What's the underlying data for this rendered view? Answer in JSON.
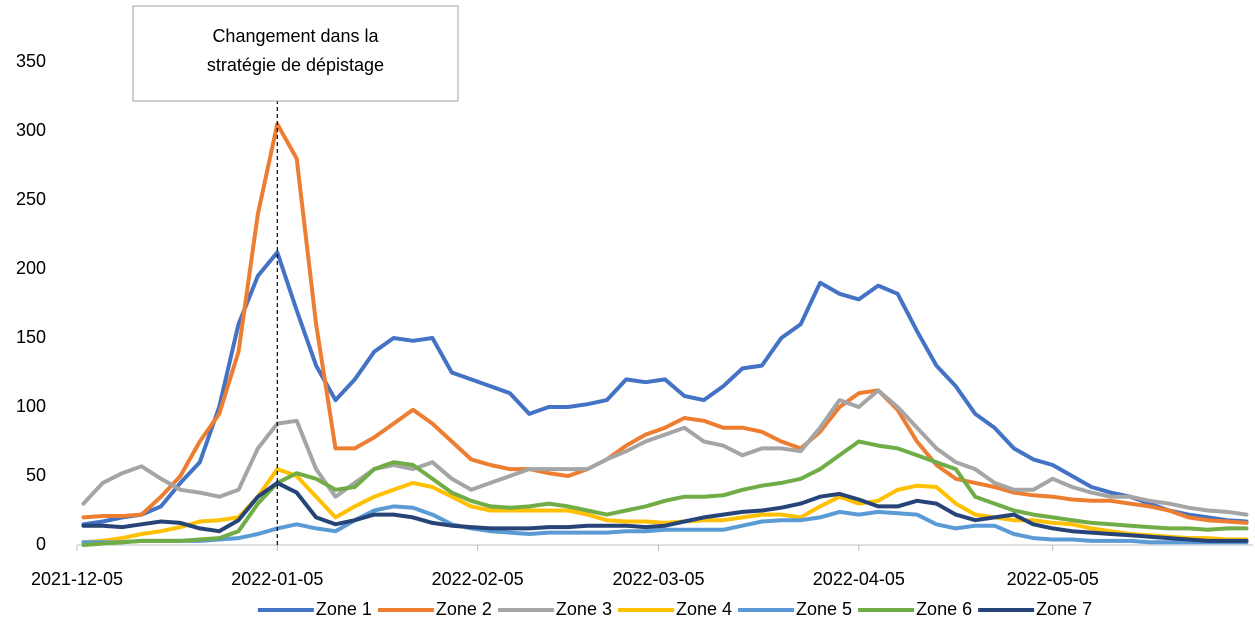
{
  "chart_data": {
    "type": "line",
    "x": [
      "2021-12-06",
      "2021-12-09",
      "2021-12-12",
      "2021-12-15",
      "2021-12-18",
      "2021-12-21",
      "2021-12-24",
      "2021-12-27",
      "2021-12-30",
      "2022-01-02",
      "2022-01-05",
      "2022-01-08",
      "2022-01-11",
      "2022-01-14",
      "2022-01-17",
      "2022-01-20",
      "2022-01-23",
      "2022-01-26",
      "2022-01-29",
      "2022-02-01",
      "2022-02-04",
      "2022-02-07",
      "2022-02-10",
      "2022-02-13",
      "2022-02-16",
      "2022-02-19",
      "2022-02-22",
      "2022-02-25",
      "2022-02-28",
      "2022-03-03",
      "2022-03-06",
      "2022-03-09",
      "2022-03-12",
      "2022-03-15",
      "2022-03-18",
      "2022-03-21",
      "2022-03-24",
      "2022-03-27",
      "2022-03-30",
      "2022-04-02",
      "2022-04-05",
      "2022-04-08",
      "2022-04-11",
      "2022-04-14",
      "2022-04-17",
      "2022-04-20",
      "2022-04-23",
      "2022-04-26",
      "2022-04-29",
      "2022-05-02",
      "2022-05-05",
      "2022-05-08",
      "2022-05-11",
      "2022-05-14",
      "2022-05-17",
      "2022-05-20",
      "2022-05-23",
      "2022-05-26",
      "2022-05-29",
      "2022-06-01",
      "2022-06-04"
    ],
    "series": [
      {
        "name": "Zone 1",
        "color": "#4472c4",
        "values": [
          15,
          17,
          20,
          22,
          28,
          45,
          60,
          100,
          160,
          195,
          212,
          170,
          130,
          105,
          120,
          140,
          150,
          148,
          150,
          125,
          120,
          115,
          110,
          95,
          100,
          100,
          102,
          105,
          120,
          118,
          120,
          108,
          105,
          115,
          128,
          130,
          150,
          160,
          190,
          182,
          178,
          188,
          182,
          155,
          130,
          115,
          95,
          85,
          70,
          62,
          58,
          50,
          42,
          38,
          35,
          30,
          25,
          22,
          20,
          18,
          17
        ]
      },
      {
        "name": "Zone 2",
        "color": "#ed7d31",
        "values": [
          20,
          21,
          21,
          22,
          35,
          50,
          75,
          95,
          140,
          240,
          305,
          280,
          160,
          70,
          70,
          78,
          88,
          98,
          88,
          75,
          62,
          58,
          55,
          55,
          52,
          50,
          55,
          62,
          72,
          80,
          85,
          92,
          90,
          85,
          85,
          82,
          75,
          70,
          82,
          100,
          110,
          112,
          98,
          75,
          58,
          48,
          45,
          42,
          38,
          36,
          35,
          33,
          32,
          32,
          30,
          28,
          25,
          20,
          18,
          17,
          16
        ]
      },
      {
        "name": "Zone 3",
        "color": "#a5a5a5",
        "values": [
          30,
          45,
          52,
          57,
          48,
          40,
          38,
          35,
          40,
          70,
          88,
          90,
          55,
          35,
          45,
          55,
          58,
          55,
          60,
          48,
          40,
          45,
          50,
          55,
          55,
          55,
          55,
          62,
          68,
          75,
          80,
          85,
          75,
          72,
          65,
          70,
          70,
          68,
          85,
          105,
          100,
          112,
          100,
          85,
          70,
          60,
          55,
          45,
          40,
          40,
          48,
          42,
          38,
          35,
          35,
          32,
          30,
          27,
          25,
          24,
          22
        ]
      },
      {
        "name": "Zone 4",
        "color": "#ffc000",
        "values": [
          2,
          3,
          5,
          8,
          10,
          13,
          17,
          18,
          20,
          35,
          55,
          50,
          35,
          20,
          28,
          35,
          40,
          45,
          42,
          35,
          28,
          25,
          25,
          25,
          25,
          25,
          22,
          18,
          17,
          17,
          16,
          17,
          18,
          18,
          20,
          22,
          22,
          20,
          28,
          35,
          30,
          32,
          40,
          43,
          42,
          30,
          22,
          20,
          18,
          18,
          16,
          15,
          12,
          10,
          8,
          7,
          6,
          5,
          5,
          4,
          4
        ]
      },
      {
        "name": "Zone 5",
        "color": "#5b9bd5",
        "values": [
          2,
          2,
          2,
          3,
          3,
          3,
          3,
          4,
          5,
          8,
          12,
          15,
          12,
          10,
          18,
          25,
          28,
          27,
          22,
          15,
          12,
          10,
          9,
          8,
          9,
          9,
          9,
          9,
          10,
          10,
          11,
          11,
          11,
          11,
          14,
          17,
          18,
          18,
          20,
          24,
          22,
          24,
          23,
          22,
          15,
          12,
          14,
          14,
          8,
          5,
          4,
          4,
          3,
          3,
          3,
          2,
          2,
          2,
          2,
          2,
          2
        ]
      },
      {
        "name": "Zone 6",
        "color": "#70ad47",
        "values": [
          0,
          1,
          2,
          3,
          3,
          3,
          4,
          5,
          10,
          30,
          45,
          52,
          48,
          40,
          42,
          55,
          60,
          58,
          48,
          38,
          32,
          28,
          27,
          28,
          30,
          28,
          25,
          22,
          25,
          28,
          32,
          35,
          35,
          36,
          40,
          43,
          45,
          48,
          55,
          65,
          75,
          72,
          70,
          65,
          60,
          55,
          35,
          30,
          25,
          22,
          20,
          18,
          16,
          15,
          14,
          13,
          12,
          12,
          11,
          12,
          12
        ]
      },
      {
        "name": "Zone 7",
        "color": "#264478",
        "values": [
          14,
          14,
          13,
          15,
          17,
          16,
          12,
          10,
          18,
          35,
          45,
          38,
          20,
          15,
          18,
          22,
          22,
          20,
          16,
          14,
          13,
          12,
          12,
          12,
          13,
          13,
          14,
          14,
          14,
          13,
          14,
          17,
          20,
          22,
          24,
          25,
          27,
          30,
          35,
          37,
          33,
          28,
          28,
          32,
          30,
          22,
          18,
          20,
          22,
          15,
          12,
          10,
          9,
          8,
          7,
          6,
          5,
          4,
          3,
          3,
          3
        ]
      }
    ],
    "xlim": [
      "2021-12-05",
      "2022-06-05"
    ],
    "xticks": [
      "2021-12-05",
      "2022-01-05",
      "2022-02-05",
      "2022-03-05",
      "2022-04-05",
      "2022-05-05"
    ],
    "ylim": [
      0,
      350
    ],
    "yticks": [
      0,
      50,
      100,
      150,
      200,
      250,
      300,
      350
    ],
    "grid": false,
    "legend": "bottom",
    "annotation": {
      "x": "2022-01-05",
      "text": [
        "Changement dans la",
        "stratégie de dépistage"
      ]
    }
  }
}
